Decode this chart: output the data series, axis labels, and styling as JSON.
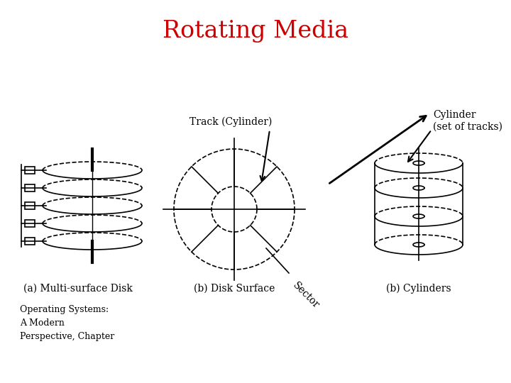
{
  "title": "Rotating Media",
  "title_color": "#cc0000",
  "title_fontsize": 24,
  "bg_color": "#ffffff",
  "label_a": "(a) Multi-surface Disk",
  "label_b": "(b) Disk Surface",
  "label_c": "(b) Cylinders",
  "track_label": "Track (Cylinder)",
  "cylinder_label": "Cylinder\n(set of tracks)",
  "sector_label": "Sector",
  "footer": "Operating Systems:\nA Modern\nPerspective, Chapter",
  "lw": 1.2,
  "col": "black"
}
